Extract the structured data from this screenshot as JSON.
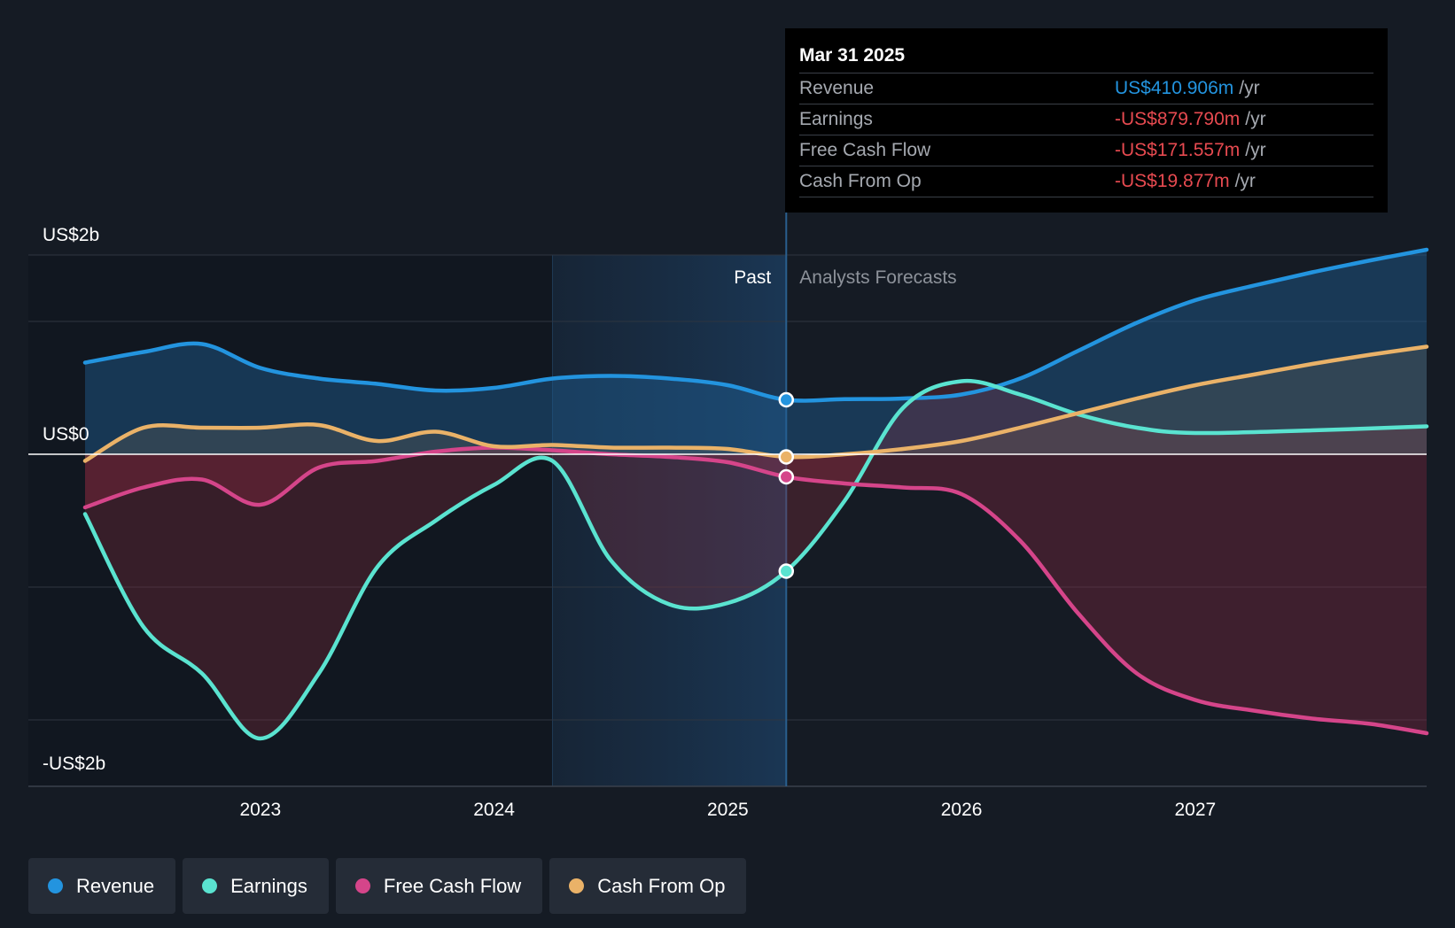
{
  "chart_data": {
    "type": "area",
    "x_axis": {
      "ticks": [
        "2023",
        "2024",
        "2025",
        "2026",
        "2027"
      ],
      "range": [
        2022.25,
        2027.99
      ]
    },
    "y_axis": {
      "label_top": "US$2b",
      "label_zero": "US$0",
      "label_bottom": "-US$2b",
      "range": [
        -2.5,
        1.5
      ],
      "gridlines": [
        1.5,
        1.0,
        0,
        -1.0,
        -2.0
      ]
    },
    "past_label": "Past",
    "forecast_label": "Analysts Forecasts",
    "divider_x": 2025.25,
    "highlight_start_x": 2024.25,
    "series": [
      {
        "name": "Revenue",
        "color": "#2394df",
        "points": [
          [
            2022.25,
            0.69
          ],
          [
            2022.5,
            0.77
          ],
          [
            2022.75,
            0.83
          ],
          [
            2023.0,
            0.65
          ],
          [
            2023.25,
            0.57
          ],
          [
            2023.5,
            0.53
          ],
          [
            2023.75,
            0.48
          ],
          [
            2024.0,
            0.5
          ],
          [
            2024.25,
            0.57
          ],
          [
            2024.5,
            0.59
          ],
          [
            2024.75,
            0.57
          ],
          [
            2025.0,
            0.52
          ],
          [
            2025.25,
            0.41
          ],
          [
            2025.5,
            0.415
          ],
          [
            2025.75,
            0.42
          ],
          [
            2026.0,
            0.45
          ],
          [
            2026.25,
            0.57
          ],
          [
            2026.5,
            0.78
          ],
          [
            2026.75,
            0.99
          ],
          [
            2027.0,
            1.16
          ],
          [
            2027.25,
            1.27
          ],
          [
            2027.5,
            1.37
          ],
          [
            2027.75,
            1.46
          ],
          [
            2027.99,
            1.54
          ]
        ]
      },
      {
        "name": "Earnings",
        "color": "#5ae3d0",
        "points": [
          [
            2022.25,
            -0.45
          ],
          [
            2022.5,
            -1.3
          ],
          [
            2022.75,
            -1.65
          ],
          [
            2023.0,
            -2.14
          ],
          [
            2023.25,
            -1.65
          ],
          [
            2023.5,
            -0.85
          ],
          [
            2023.75,
            -0.5
          ],
          [
            2024.0,
            -0.23
          ],
          [
            2024.25,
            -0.05
          ],
          [
            2024.5,
            -0.8
          ],
          [
            2024.75,
            -1.13
          ],
          [
            2025.0,
            -1.12
          ],
          [
            2025.25,
            -0.88
          ],
          [
            2025.5,
            -0.35
          ],
          [
            2025.75,
            0.35
          ],
          [
            2026.0,
            0.55
          ],
          [
            2026.25,
            0.45
          ],
          [
            2026.5,
            0.3
          ],
          [
            2026.75,
            0.2
          ],
          [
            2027.0,
            0.16
          ],
          [
            2027.5,
            0.18
          ],
          [
            2027.99,
            0.21
          ]
        ]
      },
      {
        "name": "Free Cash Flow",
        "color": "#d5458a",
        "points": [
          [
            2022.25,
            -0.4
          ],
          [
            2022.5,
            -0.25
          ],
          [
            2022.75,
            -0.19
          ],
          [
            2023.0,
            -0.38
          ],
          [
            2023.25,
            -0.1
          ],
          [
            2023.5,
            -0.05
          ],
          [
            2023.75,
            0.02
          ],
          [
            2024.0,
            0.05
          ],
          [
            2024.25,
            0.03
          ],
          [
            2024.5,
            0.0
          ],
          [
            2024.75,
            -0.02
          ],
          [
            2025.0,
            -0.06
          ],
          [
            2025.25,
            -0.17
          ],
          [
            2025.5,
            -0.22
          ],
          [
            2025.75,
            -0.25
          ],
          [
            2026.0,
            -0.3
          ],
          [
            2026.25,
            -0.65
          ],
          [
            2026.5,
            -1.2
          ],
          [
            2026.75,
            -1.65
          ],
          [
            2027.0,
            -1.85
          ],
          [
            2027.25,
            -1.93
          ],
          [
            2027.5,
            -1.99
          ],
          [
            2027.75,
            -2.03
          ],
          [
            2027.99,
            -2.1
          ]
        ]
      },
      {
        "name": "Cash From Op",
        "color": "#eab268",
        "points": [
          [
            2022.25,
            -0.05
          ],
          [
            2022.5,
            0.2
          ],
          [
            2022.75,
            0.2
          ],
          [
            2023.0,
            0.2
          ],
          [
            2023.25,
            0.22
          ],
          [
            2023.5,
            0.1
          ],
          [
            2023.75,
            0.17
          ],
          [
            2024.0,
            0.06
          ],
          [
            2024.25,
            0.07
          ],
          [
            2024.5,
            0.05
          ],
          [
            2024.75,
            0.05
          ],
          [
            2025.0,
            0.04
          ],
          [
            2025.25,
            -0.02
          ],
          [
            2025.5,
            0.0
          ],
          [
            2025.75,
            0.04
          ],
          [
            2026.0,
            0.1
          ],
          [
            2026.25,
            0.2
          ],
          [
            2026.5,
            0.31
          ],
          [
            2026.75,
            0.42
          ],
          [
            2027.0,
            0.52
          ],
          [
            2027.25,
            0.6
          ],
          [
            2027.5,
            0.68
          ],
          [
            2027.75,
            0.75
          ],
          [
            2027.99,
            0.81
          ]
        ]
      }
    ]
  },
  "tooltip": {
    "date": "Mar 31 2025",
    "rows": [
      {
        "label": "Revenue",
        "value": "US$410.906m",
        "unit": "/yr",
        "color": "#2394df"
      },
      {
        "label": "Earnings",
        "value": "-US$879.790m",
        "unit": "/yr",
        "color": "#e64a50"
      },
      {
        "label": "Free Cash Flow",
        "value": "-US$171.557m",
        "unit": "/yr",
        "color": "#e64a50"
      },
      {
        "label": "Cash From Op",
        "value": "-US$19.877m",
        "unit": "/yr",
        "color": "#e64a50"
      }
    ]
  },
  "legend": [
    {
      "label": "Revenue",
      "color": "#2394df"
    },
    {
      "label": "Earnings",
      "color": "#5ae3d0"
    },
    {
      "label": "Free Cash Flow",
      "color": "#d5458a"
    },
    {
      "label": "Cash From Op",
      "color": "#eab268"
    }
  ]
}
